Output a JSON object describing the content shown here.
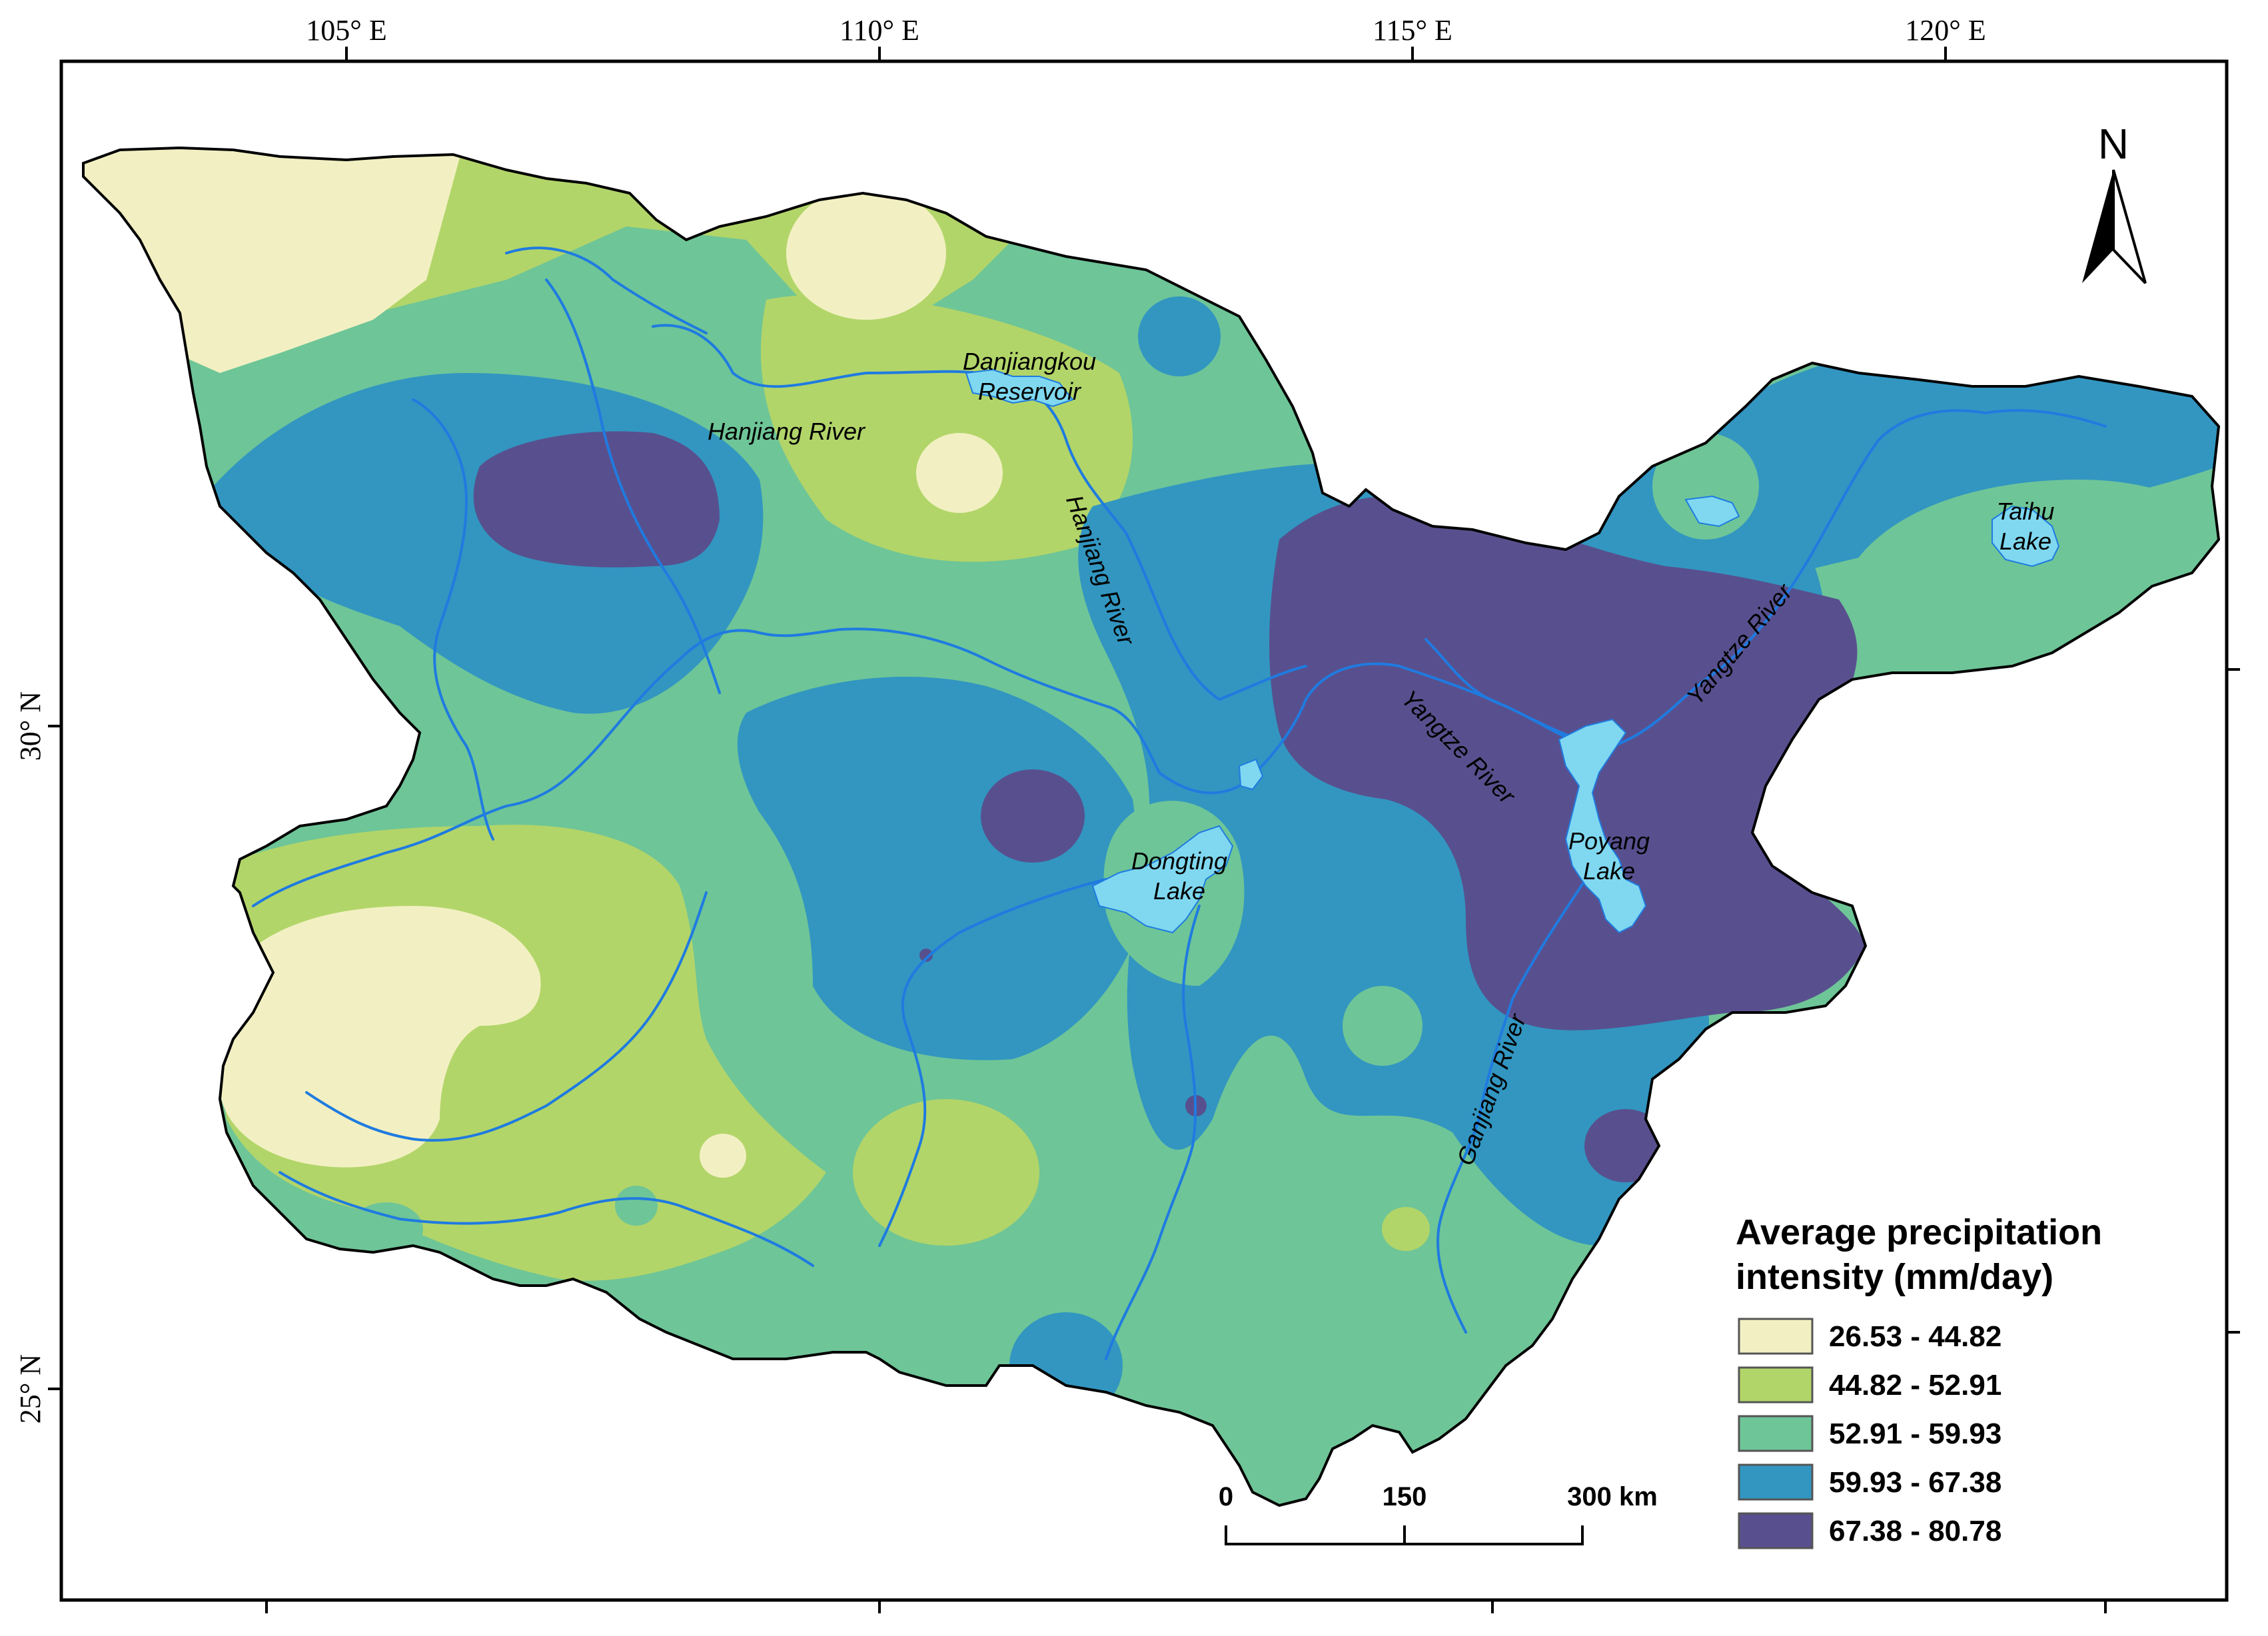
{
  "map": {
    "graticule": {
      "top_labels": [
        "105° E",
        "110° E",
        "115° E",
        "120° E"
      ],
      "left_labels": [
        "30° N",
        "25° N"
      ]
    },
    "feature_labels": {
      "hanjiang_river_upper": "Hanjiang River",
      "danjiangkou_line1": "Danjiangkou",
      "danjiangkou_line2": "Reservoir",
      "hanjiang_river_lower": "Hanjiang River",
      "yangtze_river_mid": "Yangtze River",
      "yangtze_river_east": "Yangtze River",
      "taihu_line1": "Taihu",
      "taihu_line2": "Lake",
      "dongting_line1": "Dongting",
      "dongting_line2": "Lake",
      "poyang_line1": "Poyang",
      "poyang_line2": "Lake",
      "ganjiang_river": "Ganjiang River"
    },
    "north_arrow": {
      "label": "N"
    },
    "scale_bar": {
      "labels": [
        "0",
        "150",
        "300 km"
      ]
    },
    "legend": {
      "title_line1": "Average precipitation",
      "title_line2": "intensity (mm/day)",
      "classes": [
        {
          "label": "26.53 - 44.82",
          "color": "#f2f0c2"
        },
        {
          "label": "44.82 - 52.91",
          "color": "#b2d569"
        },
        {
          "label": "52.91 - 59.93",
          "color": "#6ec597"
        },
        {
          "label": "59.93 - 67.38",
          "color": "#3296c1"
        },
        {
          "label": "67.38 - 80.78",
          "color": "#58508e"
        }
      ]
    },
    "colors": {
      "water": "#7fd8f0",
      "river": "#1f7be0"
    }
  }
}
